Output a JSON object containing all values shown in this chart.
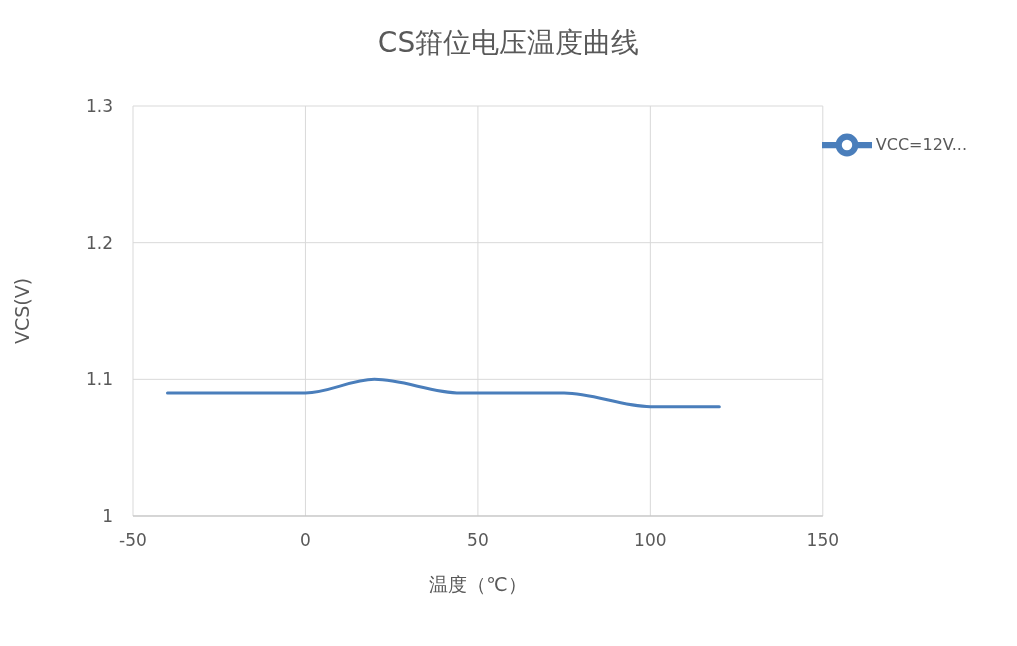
{
  "chart_data": {
    "type": "line",
    "title": "CS箝位电压温度曲线",
    "xlabel": "温度（℃）",
    "ylabel": "VCS(V)",
    "x": [
      -40,
      -20,
      0,
      20,
      45,
      75,
      100,
      120
    ],
    "series": [
      {
        "name": "VCC=12V...",
        "color": "#4a7ebb",
        "values": [
          1.09,
          1.09,
          1.09,
          1.1,
          1.09,
          1.09,
          1.08,
          1.08
        ]
      }
    ],
    "xlim": [
      -50,
      150
    ],
    "xticks": [
      -50,
      0,
      50,
      100,
      150
    ],
    "ylim": [
      1,
      1.3
    ],
    "yticks": [
      1,
      1.1,
      1.2,
      1.3
    ],
    "grid": true,
    "legend": "top right",
    "marker": "none",
    "line_style": "solid"
  }
}
